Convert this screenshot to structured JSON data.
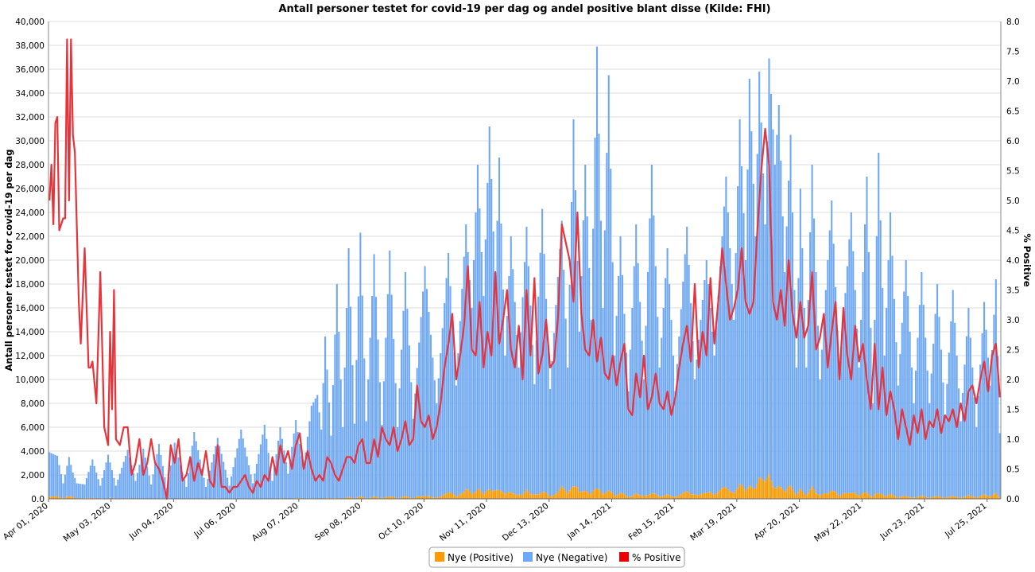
{
  "chart_data": {
    "type": "bar",
    "title": "Antall personer testet for covid-19 per dag og andel positive blant disse (Kilde: FHI)",
    "ylabel": "Antall personer testet for covid-19 per dag",
    "y2label": "% Positive",
    "ylim": [
      0,
      40000
    ],
    "y2lim": [
      0,
      8
    ],
    "yticks": [
      "0.0",
      "2,000",
      "4,000",
      "6,000",
      "8,000",
      "10,000",
      "12,000",
      "14,000",
      "16,000",
      "18,000",
      "20,000",
      "22,000",
      "24,000",
      "26,000",
      "28,000",
      "30,000",
      "32,000",
      "34,000",
      "36,000",
      "38,000",
      "40,000"
    ],
    "y2ticks": [
      "0.0",
      "0.5",
      "1.0",
      "1.5",
      "2.0",
      "2.5",
      "3.0",
      "3.5",
      "4.0",
      "4.5",
      "5.0",
      "5.5",
      "6.0",
      "6.5",
      "7.0",
      "7.5",
      "8.0"
    ],
    "start_date": "2020-04-01",
    "day_count": 487,
    "xticks": [
      {
        "day": 0,
        "label": "Apr 01, 2020"
      },
      {
        "day": 32,
        "label": "May 03, 2020"
      },
      {
        "day": 64,
        "label": "Jun 04, 2020"
      },
      {
        "day": 96,
        "label": "Jul 06, 2020"
      },
      {
        "day": 128,
        "label": "Aug 07, 2020"
      },
      {
        "day": 160,
        "label": "Sep 08, 2020"
      },
      {
        "day": 192,
        "label": "Oct 10, 2020"
      },
      {
        "day": 224,
        "label": "Nov 11, 2020"
      },
      {
        "day": 256,
        "label": "Dec 13, 2020"
      },
      {
        "day": 288,
        "label": "Jan 14, 2021"
      },
      {
        "day": 320,
        "label": "Feb 15, 2021"
      },
      {
        "day": 352,
        "label": "Mar 19, 2021"
      },
      {
        "day": 384,
        "label": "Apr 20, 2021"
      },
      {
        "day": 416,
        "label": "May 22, 2021"
      },
      {
        "day": 448,
        "label": "Jun 23, 2021"
      },
      {
        "day": 480,
        "label": "Jul 25, 2021"
      }
    ],
    "series": [
      {
        "name": "Nye (Positive)",
        "color": "#ff9900",
        "type": "bar",
        "description": "Daily positive tests, stacked at bottom. Derived per day as tested × %positive / 100.",
        "values": "computed from totals and pct"
      },
      {
        "name": "Nye (Negative)",
        "color": "#6fa8f5",
        "type": "bar",
        "description": "Daily negative tests stacked above positives (total tested minus positives)."
      },
      {
        "name": "% Positive",
        "color": "#ee0000",
        "type": "line",
        "axis": "right"
      }
    ],
    "total_tested_anchors": [
      [
        0,
        3900
      ],
      [
        4,
        3600
      ],
      [
        7,
        1300
      ],
      [
        10,
        3500
      ],
      [
        12,
        2200
      ],
      [
        14,
        1300
      ],
      [
        18,
        1200
      ],
      [
        22,
        3300
      ],
      [
        26,
        1100
      ],
      [
        30,
        3700
      ],
      [
        34,
        1100
      ],
      [
        40,
        4100
      ],
      [
        44,
        1500
      ],
      [
        48,
        4200
      ],
      [
        52,
        1200
      ],
      [
        56,
        4600
      ],
      [
        60,
        900
      ],
      [
        64,
        4700
      ],
      [
        70,
        1000
      ],
      [
        74,
        5600
      ],
      [
        80,
        1000
      ],
      [
        86,
        5100
      ],
      [
        92,
        1100
      ],
      [
        98,
        5800
      ],
      [
        104,
        1300
      ],
      [
        110,
        6200
      ],
      [
        114,
        1500
      ],
      [
        118,
        6000
      ],
      [
        122,
        2100
      ],
      [
        126,
        6600
      ],
      [
        130,
        2600
      ],
      [
        134,
        7800
      ],
      [
        137,
        8700
      ],
      [
        139,
        5800
      ],
      [
        141,
        13600
      ],
      [
        144,
        5300
      ],
      [
        147,
        18000
      ],
      [
        150,
        6000
      ],
      [
        153,
        21000
      ],
      [
        156,
        6300
      ],
      [
        159,
        22300
      ],
      [
        162,
        6500
      ],
      [
        166,
        20500
      ],
      [
        170,
        6200
      ],
      [
        174,
        20800
      ],
      [
        178,
        6000
      ],
      [
        182,
        19000
      ],
      [
        186,
        6700
      ],
      [
        192,
        19500
      ],
      [
        198,
        8000
      ],
      [
        204,
        20600
      ],
      [
        208,
        9500
      ],
      [
        213,
        23000
      ],
      [
        216,
        16000
      ],
      [
        219,
        28000
      ],
      [
        222,
        17000
      ],
      [
        225,
        31200
      ],
      [
        228,
        18000
      ],
      [
        230,
        28600
      ],
      [
        233,
        12000
      ],
      [
        236,
        22000
      ],
      [
        240,
        11000
      ],
      [
        244,
        22800
      ],
      [
        248,
        9600
      ],
      [
        252,
        24300
      ],
      [
        256,
        9200
      ],
      [
        262,
        23300
      ],
      [
        265,
        11000
      ],
      [
        268,
        31800
      ],
      [
        271,
        14000
      ],
      [
        274,
        28000
      ],
      [
        277,
        15000
      ],
      [
        280,
        37900
      ],
      [
        283,
        16000
      ],
      [
        286,
        35500
      ],
      [
        289,
        12000
      ],
      [
        292,
        22000
      ],
      [
        296,
        9000
      ],
      [
        300,
        23000
      ],
      [
        304,
        10000
      ],
      [
        308,
        28000
      ],
      [
        312,
        11000
      ],
      [
        316,
        21000
      ],
      [
        320,
        9000
      ],
      [
        326,
        22800
      ],
      [
        330,
        10000
      ],
      [
        336,
        20000
      ],
      [
        340,
        12000
      ],
      [
        346,
        27000
      ],
      [
        350,
        15000
      ],
      [
        353,
        31800
      ],
      [
        356,
        20000
      ],
      [
        358,
        35200
      ],
      [
        361,
        22000
      ],
      [
        363,
        35800
      ],
      [
        366,
        23000
      ],
      [
        368,
        36900
      ],
      [
        371,
        28000
      ],
      [
        373,
        33000
      ],
      [
        376,
        19000
      ],
      [
        379,
        30500
      ],
      [
        382,
        11000
      ],
      [
        384,
        26000
      ],
      [
        387,
        11000
      ],
      [
        390,
        28000
      ],
      [
        394,
        10000
      ],
      [
        400,
        25000
      ],
      [
        404,
        10500
      ],
      [
        410,
        24000
      ],
      [
        414,
        11000
      ],
      [
        418,
        27000
      ],
      [
        421,
        8000
      ],
      [
        424,
        29000
      ],
      [
        427,
        12000
      ],
      [
        430,
        24000
      ],
      [
        434,
        9500
      ],
      [
        438,
        20000
      ],
      [
        442,
        8000
      ],
      [
        446,
        19000
      ],
      [
        450,
        8000
      ],
      [
        454,
        18000
      ],
      [
        458,
        7000
      ],
      [
        462,
        17500
      ],
      [
        466,
        6500
      ],
      [
        470,
        16000
      ],
      [
        474,
        6000
      ],
      [
        478,
        16500
      ],
      [
        481,
        9500
      ],
      [
        484,
        18400
      ],
      [
        486,
        5500
      ]
    ],
    "pct_anchors": [
      [
        0,
        5.0
      ],
      [
        1,
        5.6
      ],
      [
        2,
        4.6
      ],
      [
        3,
        6.3
      ],
      [
        4,
        6.4
      ],
      [
        5,
        4.5
      ],
      [
        7,
        4.7
      ],
      [
        8,
        4.7
      ],
      [
        9,
        7.7
      ],
      [
        10,
        5.0
      ],
      [
        11,
        7.7
      ],
      [
        12,
        6.1
      ],
      [
        13,
        5.8
      ],
      [
        15,
        3.3
      ],
      [
        16,
        2.6
      ],
      [
        18,
        4.2
      ],
      [
        20,
        2.2
      ],
      [
        21,
        2.2
      ],
      [
        22,
        2.3
      ],
      [
        24,
        1.6
      ],
      [
        26,
        3.8
      ],
      [
        28,
        1.2
      ],
      [
        30,
        0.9
      ],
      [
        31,
        2.8
      ],
      [
        32,
        1.5
      ],
      [
        33,
        3.5
      ],
      [
        34,
        1.0
      ],
      [
        36,
        0.9
      ],
      [
        38,
        1.2
      ],
      [
        40,
        1.2
      ],
      [
        42,
        0.4
      ],
      [
        44,
        0.6
      ],
      [
        46,
        1.0
      ],
      [
        48,
        0.4
      ],
      [
        50,
        0.6
      ],
      [
        52,
        1.0
      ],
      [
        54,
        0.6
      ],
      [
        56,
        0.5
      ],
      [
        58,
        0.3
      ],
      [
        60,
        0.0
      ],
      [
        62,
        0.9
      ],
      [
        64,
        0.6
      ],
      [
        66,
        1.0
      ],
      [
        68,
        0.3
      ],
      [
        70,
        0.4
      ],
      [
        72,
        0.7
      ],
      [
        74,
        0.3
      ],
      [
        76,
        0.6
      ],
      [
        78,
        0.4
      ],
      [
        80,
        0.8
      ],
      [
        82,
        0.3
      ],
      [
        84,
        0.2
      ],
      [
        86,
        0.9
      ],
      [
        88,
        0.2
      ],
      [
        90,
        0.2
      ],
      [
        92,
        0.1
      ],
      [
        94,
        0.2
      ],
      [
        96,
        0.2
      ],
      [
        98,
        0.3
      ],
      [
        100,
        0.4
      ],
      [
        102,
        0.2
      ],
      [
        104,
        0.1
      ],
      [
        106,
        0.3
      ],
      [
        108,
        0.2
      ],
      [
        110,
        0.4
      ],
      [
        112,
        0.3
      ],
      [
        114,
        0.7
      ],
      [
        116,
        0.4
      ],
      [
        118,
        0.9
      ],
      [
        120,
        0.6
      ],
      [
        122,
        0.8
      ],
      [
        124,
        0.5
      ],
      [
        126,
        0.9
      ],
      [
        128,
        1.1
      ],
      [
        130,
        0.5
      ],
      [
        132,
        0.8
      ],
      [
        134,
        0.5
      ],
      [
        136,
        0.3
      ],
      [
        138,
        0.4
      ],
      [
        140,
        0.3
      ],
      [
        142,
        0.7
      ],
      [
        144,
        0.6
      ],
      [
        146,
        0.4
      ],
      [
        148,
        0.3
      ],
      [
        150,
        0.5
      ],
      [
        152,
        0.7
      ],
      [
        154,
        0.7
      ],
      [
        156,
        0.6
      ],
      [
        158,
        0.9
      ],
      [
        160,
        1.0
      ],
      [
        162,
        0.6
      ],
      [
        164,
        0.6
      ],
      [
        166,
        1.0
      ],
      [
        168,
        0.7
      ],
      [
        170,
        1.2
      ],
      [
        172,
        1.0
      ],
      [
        174,
        0.9
      ],
      [
        176,
        1.2
      ],
      [
        178,
        0.8
      ],
      [
        180,
        1.0
      ],
      [
        182,
        1.3
      ],
      [
        184,
        0.9
      ],
      [
        186,
        1.0
      ],
      [
        188,
        1.9
      ],
      [
        190,
        1.3
      ],
      [
        192,
        1.2
      ],
      [
        194,
        1.4
      ],
      [
        196,
        1.0
      ],
      [
        198,
        1.2
      ],
      [
        200,
        1.6
      ],
      [
        202,
        2.2
      ],
      [
        204,
        2.6
      ],
      [
        206,
        3.1
      ],
      [
        208,
        2.0
      ],
      [
        210,
        2.4
      ],
      [
        212,
        2.9
      ],
      [
        214,
        3.9
      ],
      [
        216,
        2.5
      ],
      [
        218,
        2.4
      ],
      [
        220,
        3.3
      ],
      [
        222,
        2.2
      ],
      [
        224,
        2.8
      ],
      [
        226,
        2.4
      ],
      [
        228,
        3.8
      ],
      [
        230,
        2.6
      ],
      [
        232,
        3.0
      ],
      [
        234,
        3.5
      ],
      [
        236,
        2.5
      ],
      [
        238,
        2.2
      ],
      [
        240,
        2.9
      ],
      [
        242,
        2.0
      ],
      [
        244,
        3.5
      ],
      [
        246,
        2.4
      ],
      [
        248,
        3.7
      ],
      [
        250,
        2.1
      ],
      [
        252,
        2.4
      ],
      [
        254,
        3.0
      ],
      [
        256,
        2.2
      ],
      [
        258,
        2.3
      ],
      [
        260,
        3.0
      ],
      [
        262,
        4.6
      ],
      [
        264,
        4.3
      ],
      [
        266,
        4.0
      ],
      [
        268,
        3.3
      ],
      [
        270,
        4.8
      ],
      [
        272,
        3.1
      ],
      [
        274,
        2.5
      ],
      [
        276,
        2.4
      ],
      [
        278,
        3.0
      ],
      [
        280,
        2.3
      ],
      [
        282,
        2.7
      ],
      [
        284,
        2.1
      ],
      [
        286,
        2.0
      ],
      [
        288,
        2.4
      ],
      [
        290,
        1.9
      ],
      [
        292,
        2.3
      ],
      [
        294,
        2.6
      ],
      [
        296,
        1.5
      ],
      [
        298,
        1.4
      ],
      [
        300,
        2.1
      ],
      [
        302,
        1.7
      ],
      [
        304,
        2.4
      ],
      [
        306,
        1.5
      ],
      [
        308,
        1.7
      ],
      [
        310,
        2.1
      ],
      [
        312,
        1.6
      ],
      [
        314,
        1.5
      ],
      [
        316,
        1.8
      ],
      [
        318,
        1.4
      ],
      [
        320,
        1.7
      ],
      [
        322,
        2.2
      ],
      [
        324,
        2.6
      ],
      [
        326,
        2.9
      ],
      [
        328,
        2.3
      ],
      [
        330,
        3.6
      ],
      [
        332,
        2.2
      ],
      [
        334,
        2.8
      ],
      [
        336,
        2.4
      ],
      [
        338,
        3.7
      ],
      [
        340,
        2.6
      ],
      [
        342,
        3.3
      ],
      [
        344,
        4.2
      ],
      [
        346,
        3.6
      ],
      [
        348,
        3.0
      ],
      [
        350,
        3.2
      ],
      [
        352,
        3.5
      ],
      [
        354,
        4.2
      ],
      [
        356,
        3.3
      ],
      [
        358,
        3.1
      ],
      [
        360,
        3.3
      ],
      [
        362,
        4.5
      ],
      [
        364,
        5.5
      ],
      [
        366,
        6.2
      ],
      [
        368,
        5.6
      ],
      [
        370,
        3.3
      ],
      [
        372,
        3.0
      ],
      [
        374,
        3.5
      ],
      [
        376,
        2.9
      ],
      [
        378,
        4.0
      ],
      [
        380,
        3.1
      ],
      [
        382,
        2.7
      ],
      [
        384,
        3.3
      ],
      [
        386,
        2.7
      ],
      [
        388,
        2.9
      ],
      [
        390,
        3.8
      ],
      [
        392,
        2.5
      ],
      [
        394,
        2.7
      ],
      [
        396,
        3.1
      ],
      [
        398,
        2.2
      ],
      [
        400,
        2.8
      ],
      [
        402,
        3.3
      ],
      [
        404,
        2.0
      ],
      [
        406,
        3.2
      ],
      [
        408,
        2.4
      ],
      [
        410,
        2.0
      ],
      [
        412,
        2.9
      ],
      [
        414,
        2.3
      ],
      [
        416,
        2.6
      ],
      [
        418,
        2.0
      ],
      [
        420,
        1.5
      ],
      [
        422,
        2.6
      ],
      [
        424,
        1.5
      ],
      [
        426,
        2.2
      ],
      [
        428,
        1.4
      ],
      [
        430,
        1.8
      ],
      [
        432,
        1.5
      ],
      [
        434,
        1.0
      ],
      [
        436,
        1.5
      ],
      [
        438,
        1.2
      ],
      [
        440,
        0.9
      ],
      [
        442,
        1.4
      ],
      [
        444,
        1.1
      ],
      [
        446,
        1.5
      ],
      [
        448,
        1.0
      ],
      [
        450,
        1.3
      ],
      [
        452,
        1.2
      ],
      [
        454,
        1.5
      ],
      [
        456,
        1.1
      ],
      [
        458,
        1.4
      ],
      [
        460,
        1.3
      ],
      [
        462,
        1.5
      ],
      [
        464,
        1.2
      ],
      [
        466,
        1.6
      ],
      [
        468,
        1.3
      ],
      [
        470,
        1.8
      ],
      [
        472,
        1.9
      ],
      [
        474,
        1.6
      ],
      [
        476,
        2.0
      ],
      [
        478,
        2.3
      ],
      [
        480,
        1.8
      ],
      [
        482,
        2.4
      ],
      [
        484,
        2.6
      ],
      [
        486,
        1.7
      ]
    ],
    "legend": {
      "position": "bottom-center",
      "items": [
        {
          "label": "Nye (Positive)",
          "color": "#ff9900"
        },
        {
          "label": "Nye (Negative)",
          "color": "#6fa8f5"
        },
        {
          "label": "% Positive",
          "color": "#ee0000"
        }
      ]
    },
    "grid": true
  }
}
